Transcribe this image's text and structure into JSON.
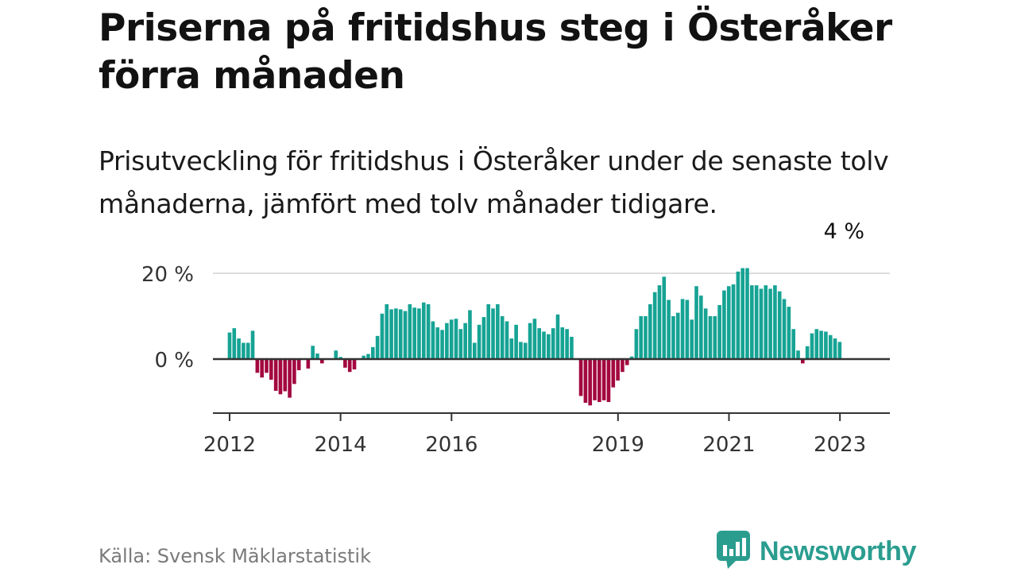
{
  "title": "Priserna på fritidshus steg i Österåker förra månaden",
  "subtitle": "Prisutveckling för fritidshus i Österåker under de senaste tolv månaderna, jämfört med tolv månader tidigare.",
  "source": "Källa: Svensk Mäklarstatistik",
  "brand": {
    "name": "Newsworthy",
    "color": "#2a9d8f",
    "logo_icon": "bar-chart-speech-bubble-icon"
  },
  "colors": {
    "positive": "#16a394",
    "negative": "#a3083f",
    "zero_line": "#333333",
    "grid": "#dddddd",
    "axis": "#333333",
    "label": "#333333"
  },
  "chart_data": {
    "type": "bar",
    "title": "",
    "xlabel": "",
    "ylabel": "",
    "unit": "%",
    "x_start": 2012.0,
    "x_step": 0.0833,
    "xlim": [
      2011.7,
      2023.9
    ],
    "ylim": [
      -12.5,
      20
    ],
    "yticks": [
      {
        "value": 0,
        "label": "0 %"
      },
      {
        "value": 20,
        "label": "20 %"
      }
    ],
    "xticks": [
      {
        "value": 2012,
        "label": "2012"
      },
      {
        "value": 2014,
        "label": "2014"
      },
      {
        "value": 2016,
        "label": "2016"
      },
      {
        "value": 2019,
        "label": "2019"
      },
      {
        "value": 2021,
        "label": "2021"
      },
      {
        "value": 2023,
        "label": "2023"
      }
    ],
    "values": [
      6.2,
      7.2,
      4.8,
      3.8,
      3.8,
      6.6,
      -3.2,
      -4.3,
      -3.2,
      -4.8,
      -7.4,
      -8.2,
      -7.5,
      -9.0,
      -5.8,
      -2.6,
      0,
      -2.2,
      3.1,
      1.3,
      -1.0,
      0,
      0,
      2.0,
      0.5,
      -2.0,
      -3.0,
      -2.4,
      0,
      0.8,
      1.2,
      2.8,
      5.4,
      10.6,
      12.8,
      11.6,
      11.8,
      11.6,
      11.2,
      12.8,
      12.0,
      11.8,
      13.2,
      12.8,
      8.8,
      7.4,
      6.8,
      8.4,
      9.2,
      9.4,
      7.0,
      8.4,
      11.4,
      3.8,
      8.0,
      9.8,
      12.8,
      11.8,
      12.8,
      10.0,
      8.8,
      4.8,
      8.0,
      4.0,
      3.8,
      8.4,
      9.4,
      7.2,
      6.4,
      5.8,
      7.2,
      10.4,
      7.4,
      7.0,
      5.2,
      0,
      -8.6,
      -10.2,
      -10.8,
      -9.6,
      -10.0,
      -9.6,
      -10.0,
      -6.6,
      -5.0,
      -3.0,
      -1.4,
      0.6,
      7.0,
      10.0,
      10.0,
      12.8,
      15.6,
      17.2,
      19.2,
      13.8,
      10.0,
      10.8,
      14.0,
      13.8,
      9.2,
      17.0,
      14.8,
      11.8,
      10.0,
      10.0,
      12.6,
      16.0,
      17.0,
      17.4,
      20.4,
      21.2,
      21.2,
      17.2,
      17.2,
      16.4,
      17.2,
      16.4,
      17.2,
      15.8,
      14.0,
      12.2,
      7.0,
      2.0,
      -1.0,
      3.0,
      6.0,
      7.0,
      6.6,
      6.4,
      5.6,
      4.8,
      4.0
    ],
    "annotation": {
      "index": 133,
      "label": "4 %"
    }
  }
}
